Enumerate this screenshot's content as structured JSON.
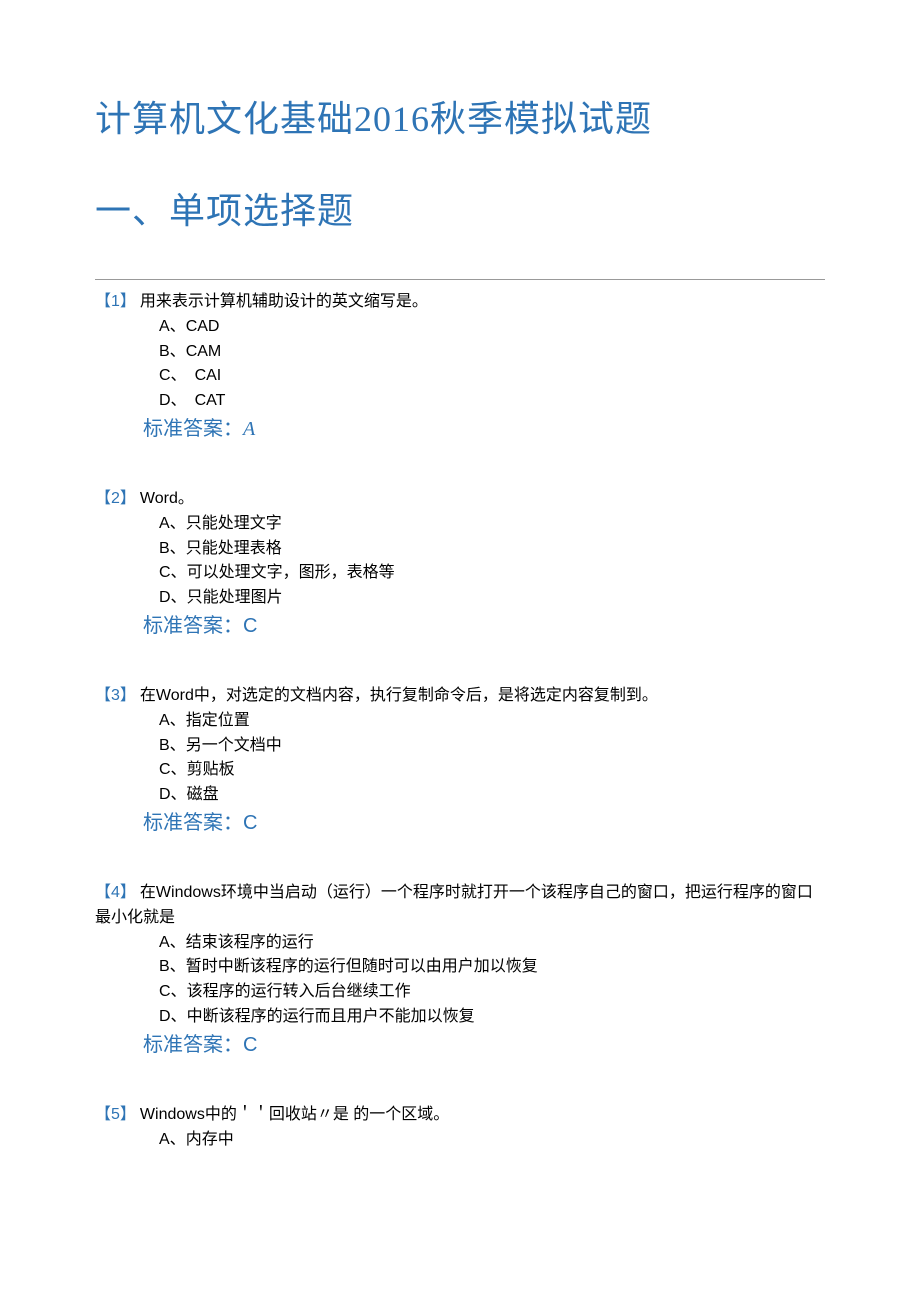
{
  "title": "计算机文化基础2016秋季模拟试题",
  "section": "一、单项选择题",
  "answer_label": "标准答案：",
  "colors": {
    "heading": "#2e74b5",
    "text": "#000000",
    "divider": "#999999",
    "background": "#ffffff"
  },
  "typography": {
    "title_fontsize": 36,
    "body_fontsize": 16,
    "answer_fontsize": 20
  },
  "questions": [
    {
      "num": "【1】",
      "stem": "用来表示计算机辅助设计的英文缩写是。",
      "options": [
        {
          "label": "A、",
          "text": "CAD"
        },
        {
          "label": "B、",
          "text": "CAM"
        },
        {
          "label": "C、",
          "text": "　CAI"
        },
        {
          "label": "D、",
          "text": "　CAT"
        }
      ],
      "answer": "A",
      "answer_italic": true
    },
    {
      "num": "【2】",
      "stem": "Word。",
      "options": [
        {
          "label": "A、",
          "text": "只能处理文字"
        },
        {
          "label": "B、",
          "text": "只能处理表格"
        },
        {
          "label": "C、",
          "text": "可以处理文字，图形，表格等"
        },
        {
          "label": "D、",
          "text": "只能处理图片"
        }
      ],
      "answer": "C",
      "answer_italic": false
    },
    {
      "num": "【3】",
      "stem": "在Word中，对选定的文档内容，执行复制命令后，是将选定内容复制到。",
      "options": [
        {
          "label": "A、",
          "text": "指定位置"
        },
        {
          "label": "B、",
          "text": "另一个文档中"
        },
        {
          "label": "C、",
          "text": "剪贴板"
        },
        {
          "label": "D、",
          "text": "磁盘"
        }
      ],
      "answer": "C",
      "answer_italic": false
    },
    {
      "num": "【4】",
      "stem": "在Windows环境中当启动（运行）一个程序时就打开一个该程序自己的窗口，把运行程序的窗口最小化就是",
      "options": [
        {
          "label": "A、",
          "text": "结束该程序的运行"
        },
        {
          "label": "B、",
          "text": "暂时中断该程序的运行但随时可以由用户加以恢复"
        },
        {
          "label": "C、",
          "text": "该程序的运行转入后台继续工作"
        },
        {
          "label": "D、",
          "text": "中断该程序的运行而且用户不能加以恢复"
        }
      ],
      "answer": "C",
      "answer_italic": false
    },
    {
      "num": "【5】",
      "stem": "Windows中的＇＇回收站〃是 的一个区域。",
      "options": [
        {
          "label": "A、",
          "text": "内存中"
        }
      ],
      "answer": "",
      "answer_italic": false
    }
  ]
}
